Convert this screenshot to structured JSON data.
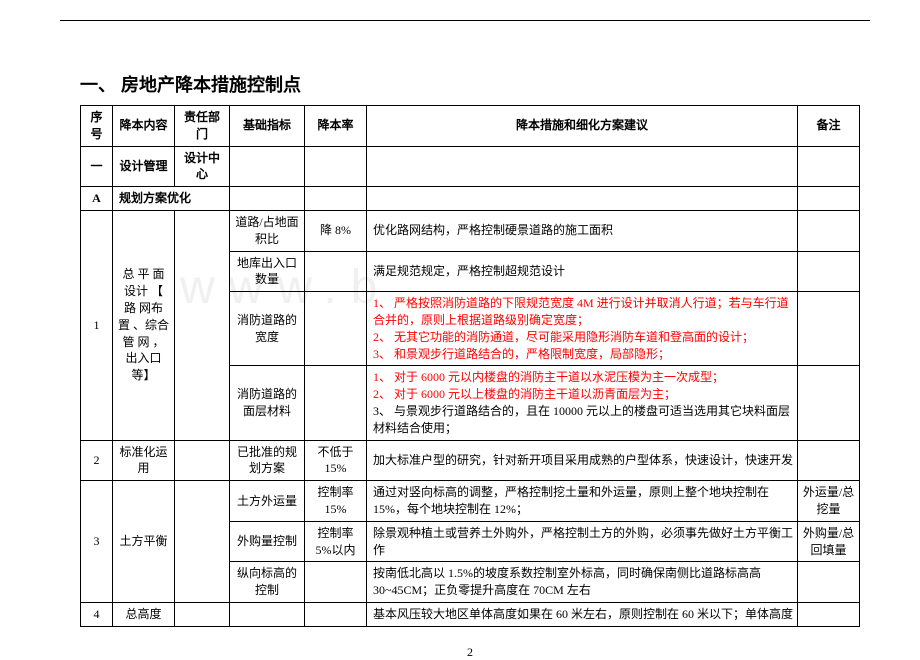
{
  "title": "一、 房地产降本措施控制点",
  "watermark": "www.b",
  "pageNumber": "2",
  "headers": {
    "seq": "序号",
    "content": "降本内容",
    "dept": "责任部门",
    "base": "基础指标",
    "rate": "降本率",
    "suggestion": "降本措施和细化方案建议",
    "note": "备注"
  },
  "sectionRow": {
    "seq": "一",
    "content": "设计管理",
    "dept": "设计中心"
  },
  "optRow": {
    "seq": "A",
    "label": "规划方案优化"
  },
  "r1": {
    "seq": "1",
    "content": "总 平 面 设计 【 路 网布 置 、综合 管 网 ，出入口等】",
    "b1": "道路/占地面积比",
    "rate1": "降 8%",
    "s1": "优化路网结构，严格控制硬景道路的施工面积",
    "b2": "地库出入口数量",
    "s2": "满足规范规定，严格控制超规范设计",
    "b3": "消防道路的宽度",
    "s3": "1、 严格按照消防道路的下限规范宽度 4M 进行设计并取消人行道；若与车行道合并的，原则上根据道路级别确定宽度；\n2、 无其它功能的消防通道，尽可能采用隐形消防车道和登高面的设计；\n3、 和景观步行道路结合的，严格限制宽度，局部隐形；",
    "b4": "消防道路的面层材料",
    "s4a": "1、 对于 6000 元以内楼盘的消防主干道以水泥压模为主一次成型；\n2、 对于 6000 元以上楼盘的消防主干道以沥青面层为主；",
    "s4b": "3、 与景观步行道路结合的，且在 10000 元以上的楼盘可适当选用其它块料面层材料结合使用；"
  },
  "r2": {
    "seq": "2",
    "content": "标准化运用",
    "base": "已批准的规划方案",
    "rate": "不低于 15%",
    "sugg": "加大标准户型的研究，针对新开项目采用成熟的户型体系，快速设计，快速开发"
  },
  "r3": {
    "seq": "3",
    "content": "土方平衡",
    "b1": "土方外运量",
    "rate1": "控制率 15%",
    "s1": "通过对竖向标高的调整，严格控制挖土量和外运量，原则上整个地块控制在15%，每个地块控制在 12%；",
    "n1": "外运量/总挖量",
    "b2": "外购量控制",
    "rate2": "控制率 5%以内",
    "s2": "除景观种植土或营养土外购外，严格控制土方的外购，必须事先做好土方平衡工作",
    "n2": "外购量/总回填量",
    "b3": "纵向标高的控制",
    "s3": "按南低北高以 1.5%的坡度系数控制室外标高，同时确保南侧比道路标高高30~45CM；正负零提升高度在 70CM 左右"
  },
  "r4": {
    "seq": "4",
    "content": "总高度",
    "sugg": "基本风压较大地区单体高度如果在 60 米左右，原则控制在 60 米以下；单体高度"
  }
}
